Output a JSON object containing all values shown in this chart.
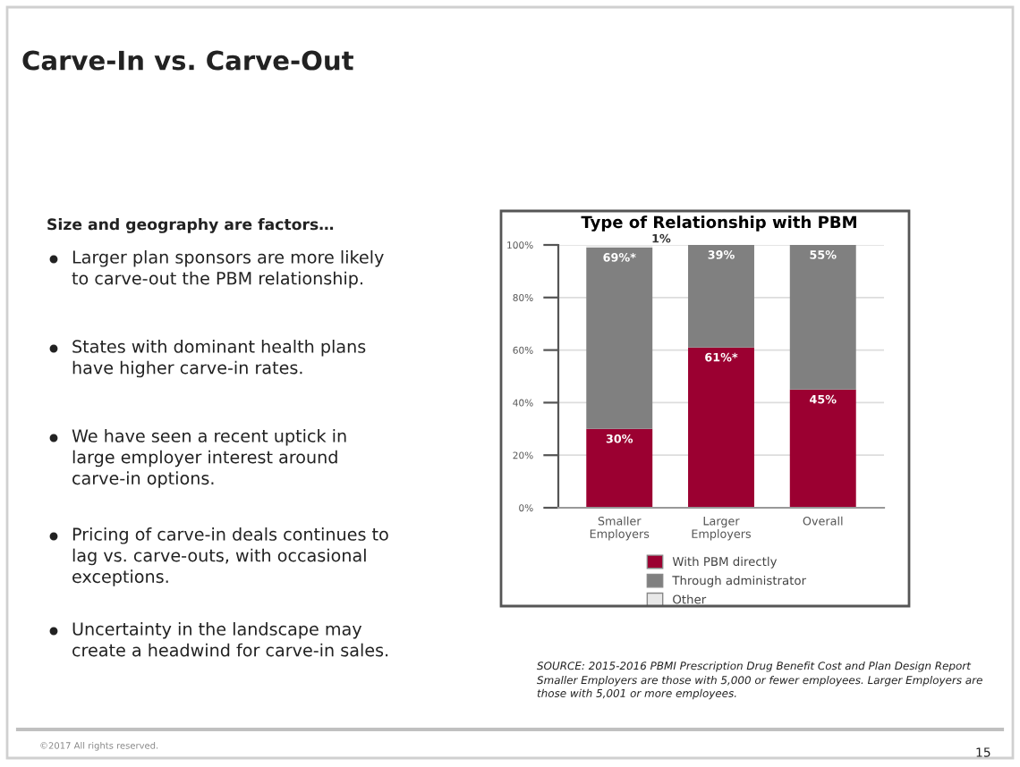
{
  "chart_data": {
    "type": "bar",
    "stacked": true,
    "title": "Type of Relationship with PBM",
    "categories": [
      "Smaller Employers",
      "Larger Employers",
      "Overall"
    ],
    "series": [
      {
        "name": "With PBM directly",
        "color": "#9b0031",
        "values": [
          30,
          61,
          45
        ],
        "value_labels": [
          "30%",
          "61%*",
          "45%"
        ]
      },
      {
        "name": "Through administrator",
        "color": "#808080",
        "values": [
          69,
          39,
          55
        ],
        "value_labels": [
          "69%*",
          "39%",
          "55%"
        ]
      },
      {
        "name": "Other",
        "color": "#e8e8e8",
        "values": [
          1,
          0,
          0
        ],
        "value_labels": [
          "1%",
          null,
          null
        ]
      }
    ],
    "ylim": [
      0,
      100
    ],
    "yticks": [
      {
        "value": 0,
        "label": "0%"
      },
      {
        "value": 20,
        "label": "20%"
      },
      {
        "value": 40,
        "label": "40%"
      },
      {
        "value": 60,
        "label": "60%"
      },
      {
        "value": 80,
        "label": "80%"
      },
      {
        "value": 100,
        "label": "100%"
      }
    ],
    "grid": "y",
    "legend": "bottom",
    "annotations": [
      "Carve-In vs. Carve-Out",
      "Size and geography are factors…",
      "Larger plan sponsors are more likely\nto carve-out the PBM relationship.",
      "States with dominant health plans\nhave higher carve-in rates.",
      "We have seen a recent uptick in\nlarge employer interest around\ncarve-in options.",
      "Pricing of carve-in deals continues to\nlag vs. carve-outs, with occasional\nexceptions.",
      "Uncertainty in the landscape may\ncreate a headwind for carve-in sales.",
      "SOURCE: 2015-2016 PBMI Prescription Drug Benefit Cost and Plan Design Report",
      "Smaller Employers are those with 5,000 or fewer employees. Larger Employers are\nthose with 5,001 or more employees.",
      "©2017 All rights reserved.",
      "15"
    ]
  }
}
